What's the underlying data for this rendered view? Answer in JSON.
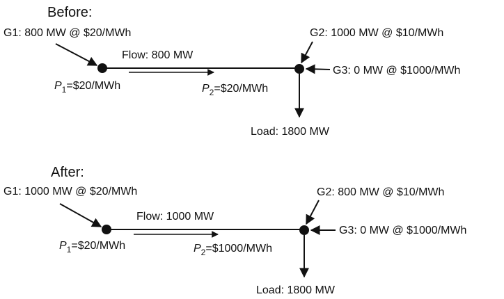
{
  "panels": [
    {
      "title": "Before:",
      "g1": "G1: 800 MW @ $20/MWh",
      "g2": "G2: 1000 MW @ $10/MWh",
      "g3": "G3: 0 MW @ $1000/MWh",
      "flow": "Flow: 800 MW",
      "p1": {
        "symbol": "P",
        "subscript": "1",
        "value": "=$20/MWh"
      },
      "p2": {
        "symbol": "P",
        "subscript": "2",
        "value": "=$20/MWh"
      },
      "load": "Load: 1800 MW"
    },
    {
      "title": "After:",
      "g1": "G1: 1000 MW @ $20/MWh",
      "g2": "G2: 800 MW @ $10/MWh",
      "g3": "G3: 0 MW @ $1000/MWh",
      "flow": "Flow: 1000 MW",
      "p1": {
        "symbol": "P",
        "subscript": "1",
        "value": "=$20/MWh"
      },
      "p2": {
        "symbol": "P",
        "subscript": "2",
        "value": "=$1000/MWh"
      },
      "load": "Load: 1800 MW"
    }
  ]
}
